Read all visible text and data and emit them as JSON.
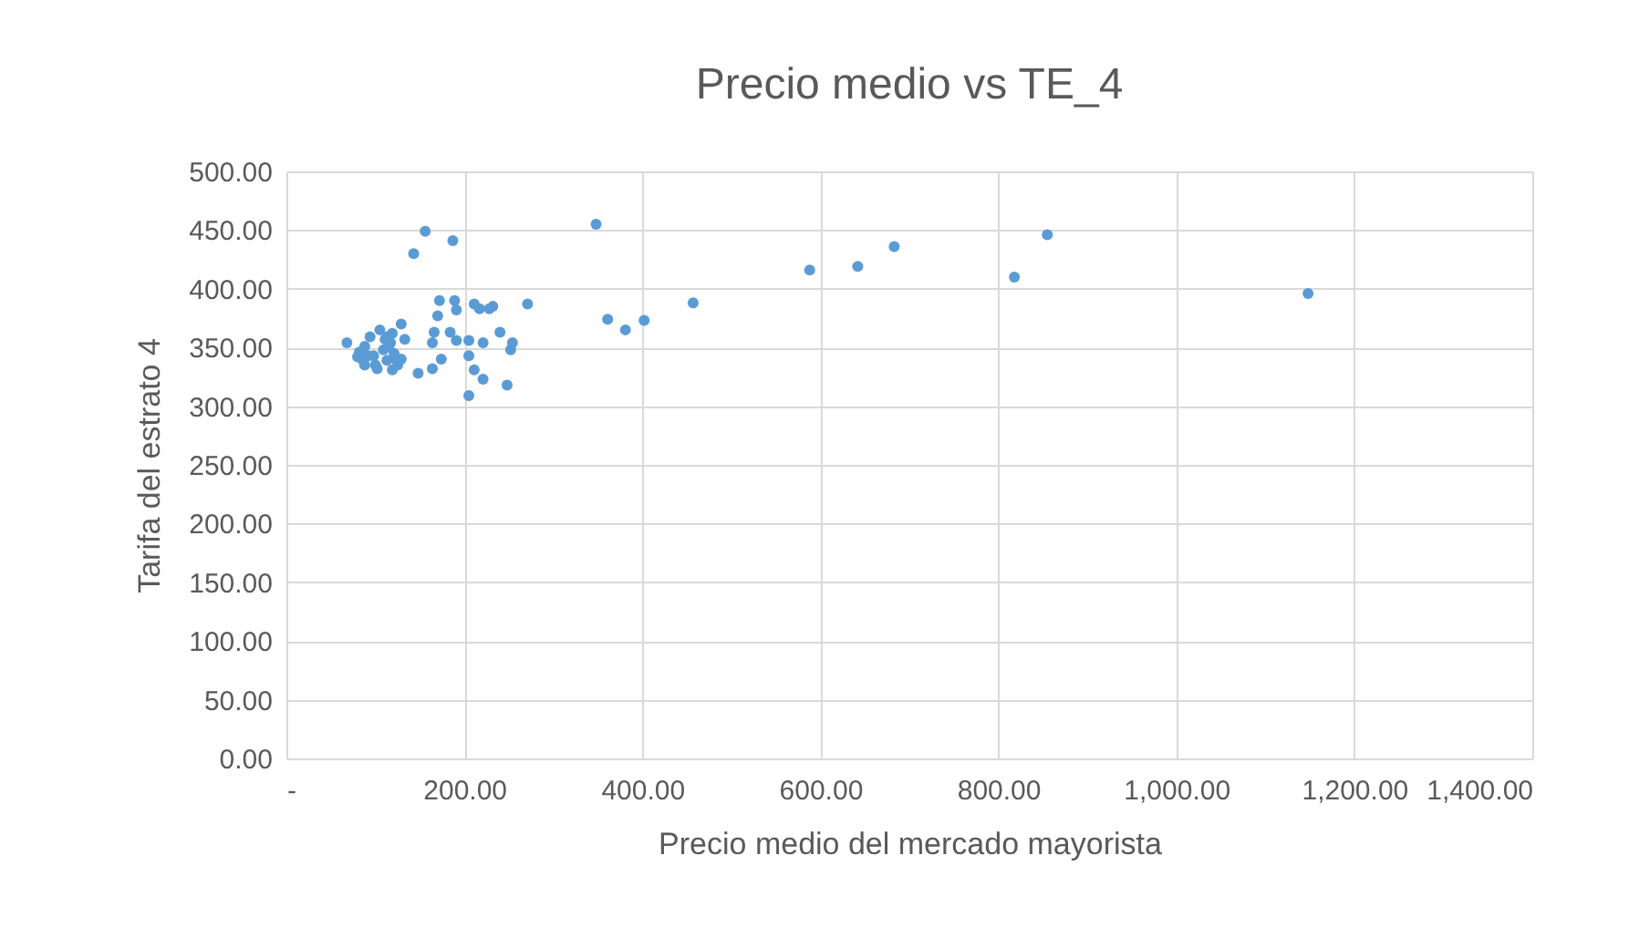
{
  "chart_data": {
    "type": "scatter",
    "title": "Precio medio vs TE_4",
    "xlabel": "Precio medio del mercado mayorista",
    "ylabel": "Tarifa del estrato 4",
    "x": [
      156,
      143,
      187,
      348,
      361,
      381,
      402,
      457,
      588,
      642,
      683,
      818,
      855,
      1148,
      68,
      80,
      88,
      94,
      100,
      105,
      109,
      113,
      117,
      121,
      125,
      98,
      86,
      111,
      119,
      129,
      133,
      129,
      172,
      189,
      211,
      232,
      271,
      170,
      166,
      164,
      184,
      191,
      205,
      221,
      240,
      254,
      252,
      205,
      174,
      164,
      148,
      211,
      221,
      205,
      248,
      82,
      88,
      102,
      119,
      115,
      113,
      123,
      92,
      191,
      217,
      228
    ],
    "series": [
      {
        "color": "#5b9bd5",
        "values": [
          449,
          430,
          441,
          455,
          374,
          365,
          373,
          388,
          416,
          419,
          436,
          410,
          446,
          396,
          354,
          342,
          351,
          359,
          335,
          365,
          348,
          339,
          354,
          345,
          335,
          343,
          339,
          357,
          362,
          340,
          357,
          370,
          390,
          390,
          387,
          385,
          387,
          377,
          363,
          354,
          363,
          356,
          356,
          354,
          363,
          354,
          348,
          343,
          340,
          332,
          328,
          331,
          323,
          309,
          318,
          346,
          335,
          332,
          331,
          351,
          359,
          340,
          343,
          382,
          383,
          383
        ]
      }
    ],
    "xlim": [
      0,
      1400
    ],
    "xticks": [
      {
        "value": 0,
        "label": "-"
      },
      {
        "value": 200,
        "label": "200.00"
      },
      {
        "value": 400,
        "label": "400.00"
      },
      {
        "value": 600,
        "label": "600.00"
      },
      {
        "value": 800,
        "label": "800.00"
      },
      {
        "value": 1000,
        "label": "1,000.00"
      },
      {
        "value": 1200,
        "label": "1,200.00"
      },
      {
        "value": 1400,
        "label": "1,400.00"
      }
    ],
    "ylim": [
      0,
      500
    ],
    "yticks": [
      {
        "value": 0,
        "label": "0.00"
      },
      {
        "value": 50,
        "label": "50.00"
      },
      {
        "value": 100,
        "label": "100.00"
      },
      {
        "value": 150,
        "label": "150.00"
      },
      {
        "value": 200,
        "label": "200.00"
      },
      {
        "value": 250,
        "label": "250.00"
      },
      {
        "value": 300,
        "label": "300.00"
      },
      {
        "value": 350,
        "label": "350.00"
      },
      {
        "value": 400,
        "label": "400.00"
      },
      {
        "value": 450,
        "label": "450.00"
      },
      {
        "value": 500,
        "label": "500.00"
      }
    ],
    "grid": true,
    "marker": "circle"
  }
}
